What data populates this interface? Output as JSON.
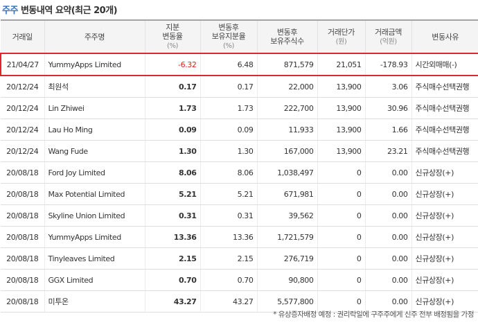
{
  "title": {
    "accent": "주주",
    "rest": "변동내역 요약(최근 20개)"
  },
  "headers": [
    {
      "label": "거래일",
      "unit": ""
    },
    {
      "label": "주주명",
      "unit": ""
    },
    {
      "label": "지분\n변동율",
      "unit": "(%)"
    },
    {
      "label": "변동후\n보유지분율",
      "unit": "(%)"
    },
    {
      "label": "변동후\n보유주식수",
      "unit": ""
    },
    {
      "label": "거래단가",
      "unit": "(원)"
    },
    {
      "label": "거래금액",
      "unit": "(억원)"
    },
    {
      "label": "변동사유",
      "unit": ""
    }
  ],
  "rows": [
    {
      "date": "21/04/27",
      "name": "YummyApps Limited",
      "change": "-6.32",
      "ratio": "6.48",
      "shares": "871,579",
      "price": "21,051",
      "amount": "-178.93",
      "reason": "시간외매매(-)",
      "highlight": true,
      "change_style": "neg"
    },
    {
      "date": "20/12/24",
      "name": "최원석",
      "change": "0.17",
      "ratio": "0.17",
      "shares": "22,000",
      "price": "13,900",
      "amount": "3.06",
      "reason": "주식매수선택권행",
      "highlight": false,
      "change_style": "bold"
    },
    {
      "date": "20/12/24",
      "name": "Lin Zhiwei",
      "change": "1.73",
      "ratio": "1.73",
      "shares": "222,700",
      "price": "13,900",
      "amount": "30.96",
      "reason": "주식매수선택권행",
      "highlight": false,
      "change_style": "bold"
    },
    {
      "date": "20/12/24",
      "name": "Lau Ho Ming",
      "change": "0.09",
      "ratio": "0.09",
      "shares": "11,933",
      "price": "13,900",
      "amount": "1.66",
      "reason": "주식매수선택권행",
      "highlight": false,
      "change_style": "bold"
    },
    {
      "date": "20/12/24",
      "name": "Wang Fude",
      "change": "1.30",
      "ratio": "1.30",
      "shares": "167,000",
      "price": "13,900",
      "amount": "23.21",
      "reason": "주식매수선택권행",
      "highlight": false,
      "change_style": "bold"
    },
    {
      "date": "20/08/18",
      "name": "Ford Joy Limited",
      "change": "8.06",
      "ratio": "8.06",
      "shares": "1,038,497",
      "price": "0",
      "amount": "0.00",
      "reason": "신규상장(+)",
      "highlight": false,
      "change_style": "bold"
    },
    {
      "date": "20/08/18",
      "name": "Max Potential Limited",
      "change": "5.21",
      "ratio": "5.21",
      "shares": "671,981",
      "price": "0",
      "amount": "0.00",
      "reason": "신규상장(+)",
      "highlight": false,
      "change_style": "bold"
    },
    {
      "date": "20/08/18",
      "name": "Skyline Union Limited",
      "change": "0.31",
      "ratio": "0.31",
      "shares": "39,562",
      "price": "0",
      "amount": "0.00",
      "reason": "신규상장(+)",
      "highlight": false,
      "change_style": "bold"
    },
    {
      "date": "20/08/18",
      "name": "YummyApps Limited",
      "change": "13.36",
      "ratio": "13.36",
      "shares": "1,721,579",
      "price": "0",
      "amount": "0.00",
      "reason": "신규상장(+)",
      "highlight": false,
      "change_style": "bold"
    },
    {
      "date": "20/08/18",
      "name": "Tinyleaves Limited",
      "change": "2.15",
      "ratio": "2.15",
      "shares": "276,719",
      "price": "0",
      "amount": "0.00",
      "reason": "신규상장(+)",
      "highlight": false,
      "change_style": "bold"
    },
    {
      "date": "20/08/18",
      "name": "GGX Limited",
      "change": "0.70",
      "ratio": "0.70",
      "shares": "90,800",
      "price": "0",
      "amount": "0.00",
      "reason": "신규상장(+)",
      "highlight": false,
      "change_style": "bold"
    },
    {
      "date": "20/08/18",
      "name": "미투온",
      "change": "43.27",
      "ratio": "43.27",
      "shares": "5,577,800",
      "price": "0",
      "amount": "0.00",
      "reason": "신규상장(+)",
      "highlight": false,
      "change_style": "bold"
    }
  ],
  "footnote": "* 유상증자배정 예정 : 권리락일에 구주주에게 신주 전부 배정됨을 가정"
}
